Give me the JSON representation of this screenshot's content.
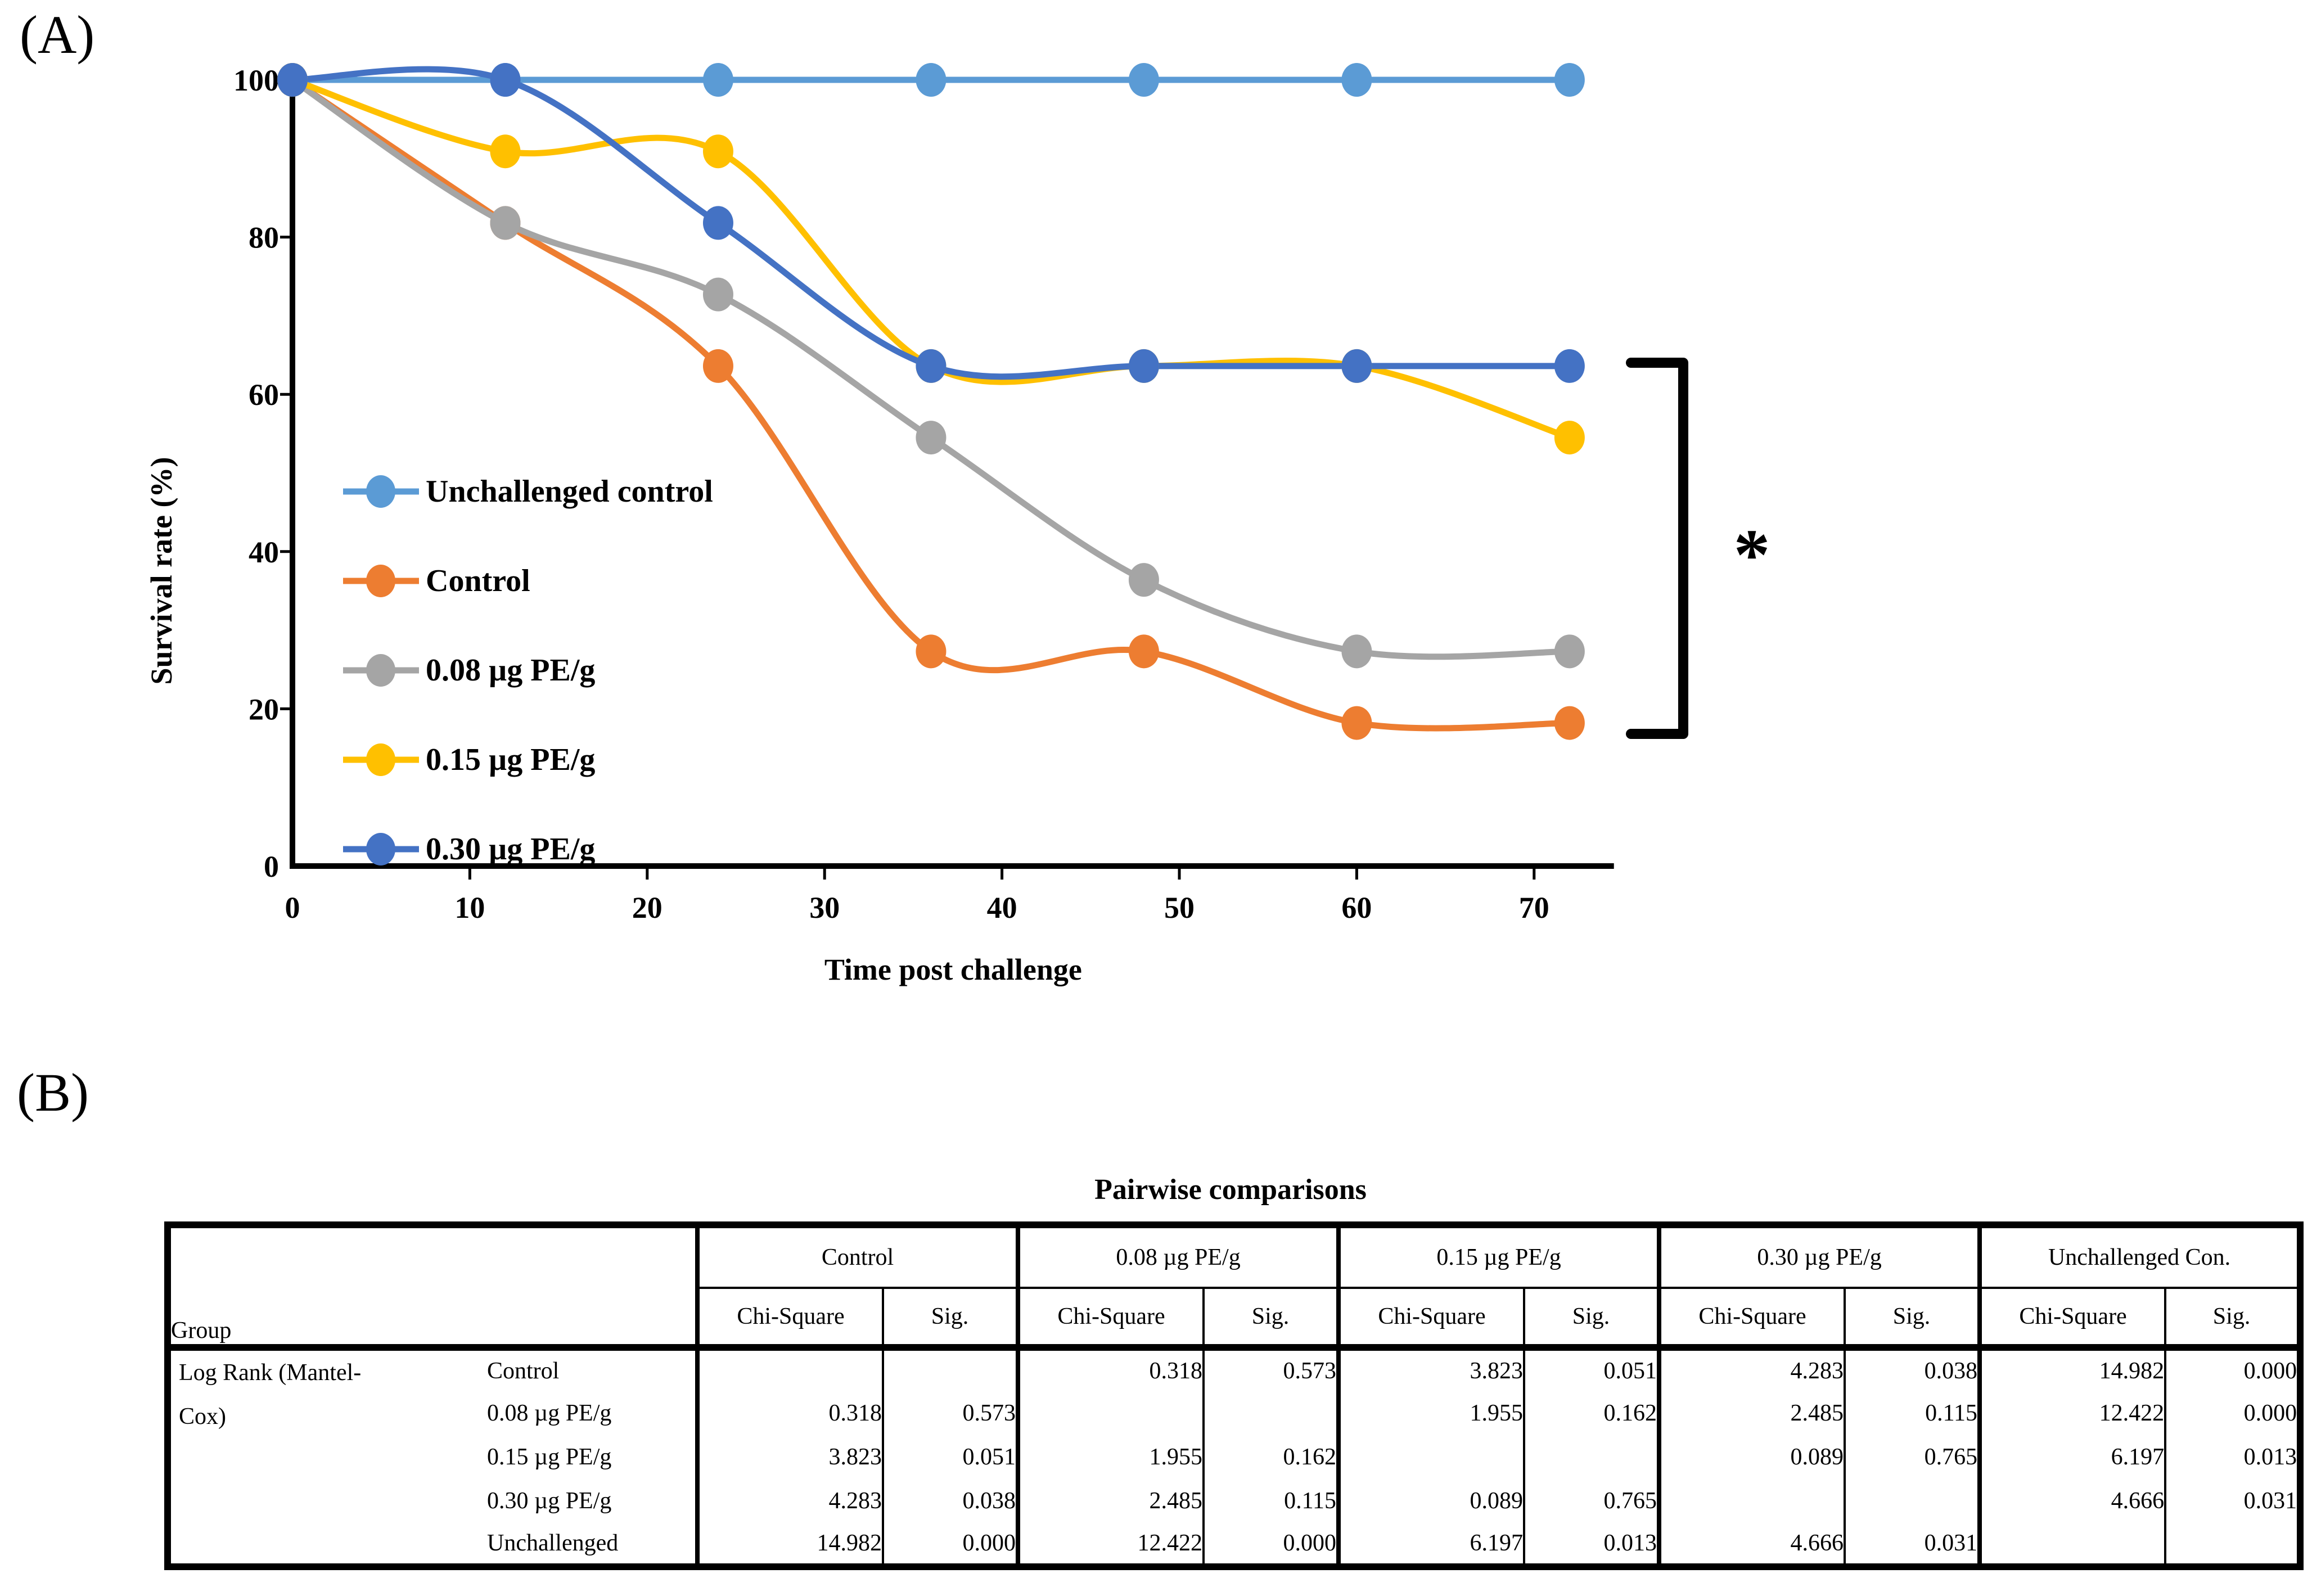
{
  "panels": {
    "a_label": "(A)",
    "b_label": "(B)"
  },
  "chart_data": {
    "type": "line",
    "x": [
      0,
      12,
      24,
      36,
      48,
      60,
      72
    ],
    "series": [
      {
        "name": "Unchallenged control",
        "color": "#5B9BD5",
        "values": [
          100,
          100,
          100,
          100,
          100,
          100,
          100
        ]
      },
      {
        "name": "Control",
        "color": "#ED7D31",
        "values": [
          100,
          81.8,
          63.6,
          27.3,
          27.3,
          18.2,
          18.2
        ]
      },
      {
        "name": "0.08 µg PE/g",
        "color": "#A5A5A5",
        "values": [
          100,
          81.8,
          72.7,
          54.5,
          36.4,
          27.3,
          27.3
        ]
      },
      {
        "name": "0.15 µg PE/g",
        "color": "#FFC000",
        "values": [
          100,
          90.9,
          90.9,
          63.6,
          63.6,
          63.6,
          54.5
        ]
      },
      {
        "name": "0.30 µg PE/g",
        "color": "#4472C4",
        "values": [
          100,
          100,
          81.8,
          63.6,
          63.6,
          63.6,
          63.6
        ]
      }
    ],
    "xlabel": "Time post challenge",
    "ylabel": "Survival rate (%)",
    "x_ticks": [
      0,
      10,
      20,
      30,
      40,
      50,
      60,
      70
    ],
    "y_ticks": [
      0,
      20,
      40,
      60,
      80,
      100
    ],
    "xlim": [
      0,
      74.5
    ],
    "ylim": [
      0,
      100
    ],
    "grid": false,
    "legend_position": "inside-left",
    "annotation": "*"
  },
  "table": {
    "title": "Pairwise comparisons",
    "row_header": "Group",
    "method_label": "Log Rank (Mantel-Cox)",
    "col_groups": [
      "Control",
      "0.08 µg PE/g",
      "0.15 µg PE/g",
      "0.30 µg PE/g",
      "Unchallenged Con."
    ],
    "sub_headers": [
      "Chi-Square",
      "Sig."
    ],
    "rows": [
      {
        "label": "Control",
        "values": [
          "",
          "",
          "0.318",
          "0.573",
          "3.823",
          "0.051",
          "4.283",
          "0.038",
          "14.982",
          "0.000"
        ]
      },
      {
        "label": "0.08 µg PE/g",
        "values": [
          "0.318",
          "0.573",
          "",
          "",
          "1.955",
          "0.162",
          "2.485",
          "0.115",
          "12.422",
          "0.000"
        ]
      },
      {
        "label": "0.15 µg PE/g",
        "values": [
          "3.823",
          "0.051",
          "1.955",
          "0.162",
          "",
          "",
          "0.089",
          "0.765",
          "6.197",
          "0.013"
        ]
      },
      {
        "label": "0.30 µg PE/g",
        "values": [
          "4.283",
          "0.038",
          "2.485",
          "0.115",
          "0.089",
          "0.765",
          "",
          "",
          "4.666",
          "0.031"
        ]
      },
      {
        "label": "Unchallenged",
        "values": [
          "14.982",
          "0.000",
          "12.422",
          "0.000",
          "6.197",
          "0.013",
          "4.666",
          "0.031",
          "",
          ""
        ]
      }
    ]
  }
}
